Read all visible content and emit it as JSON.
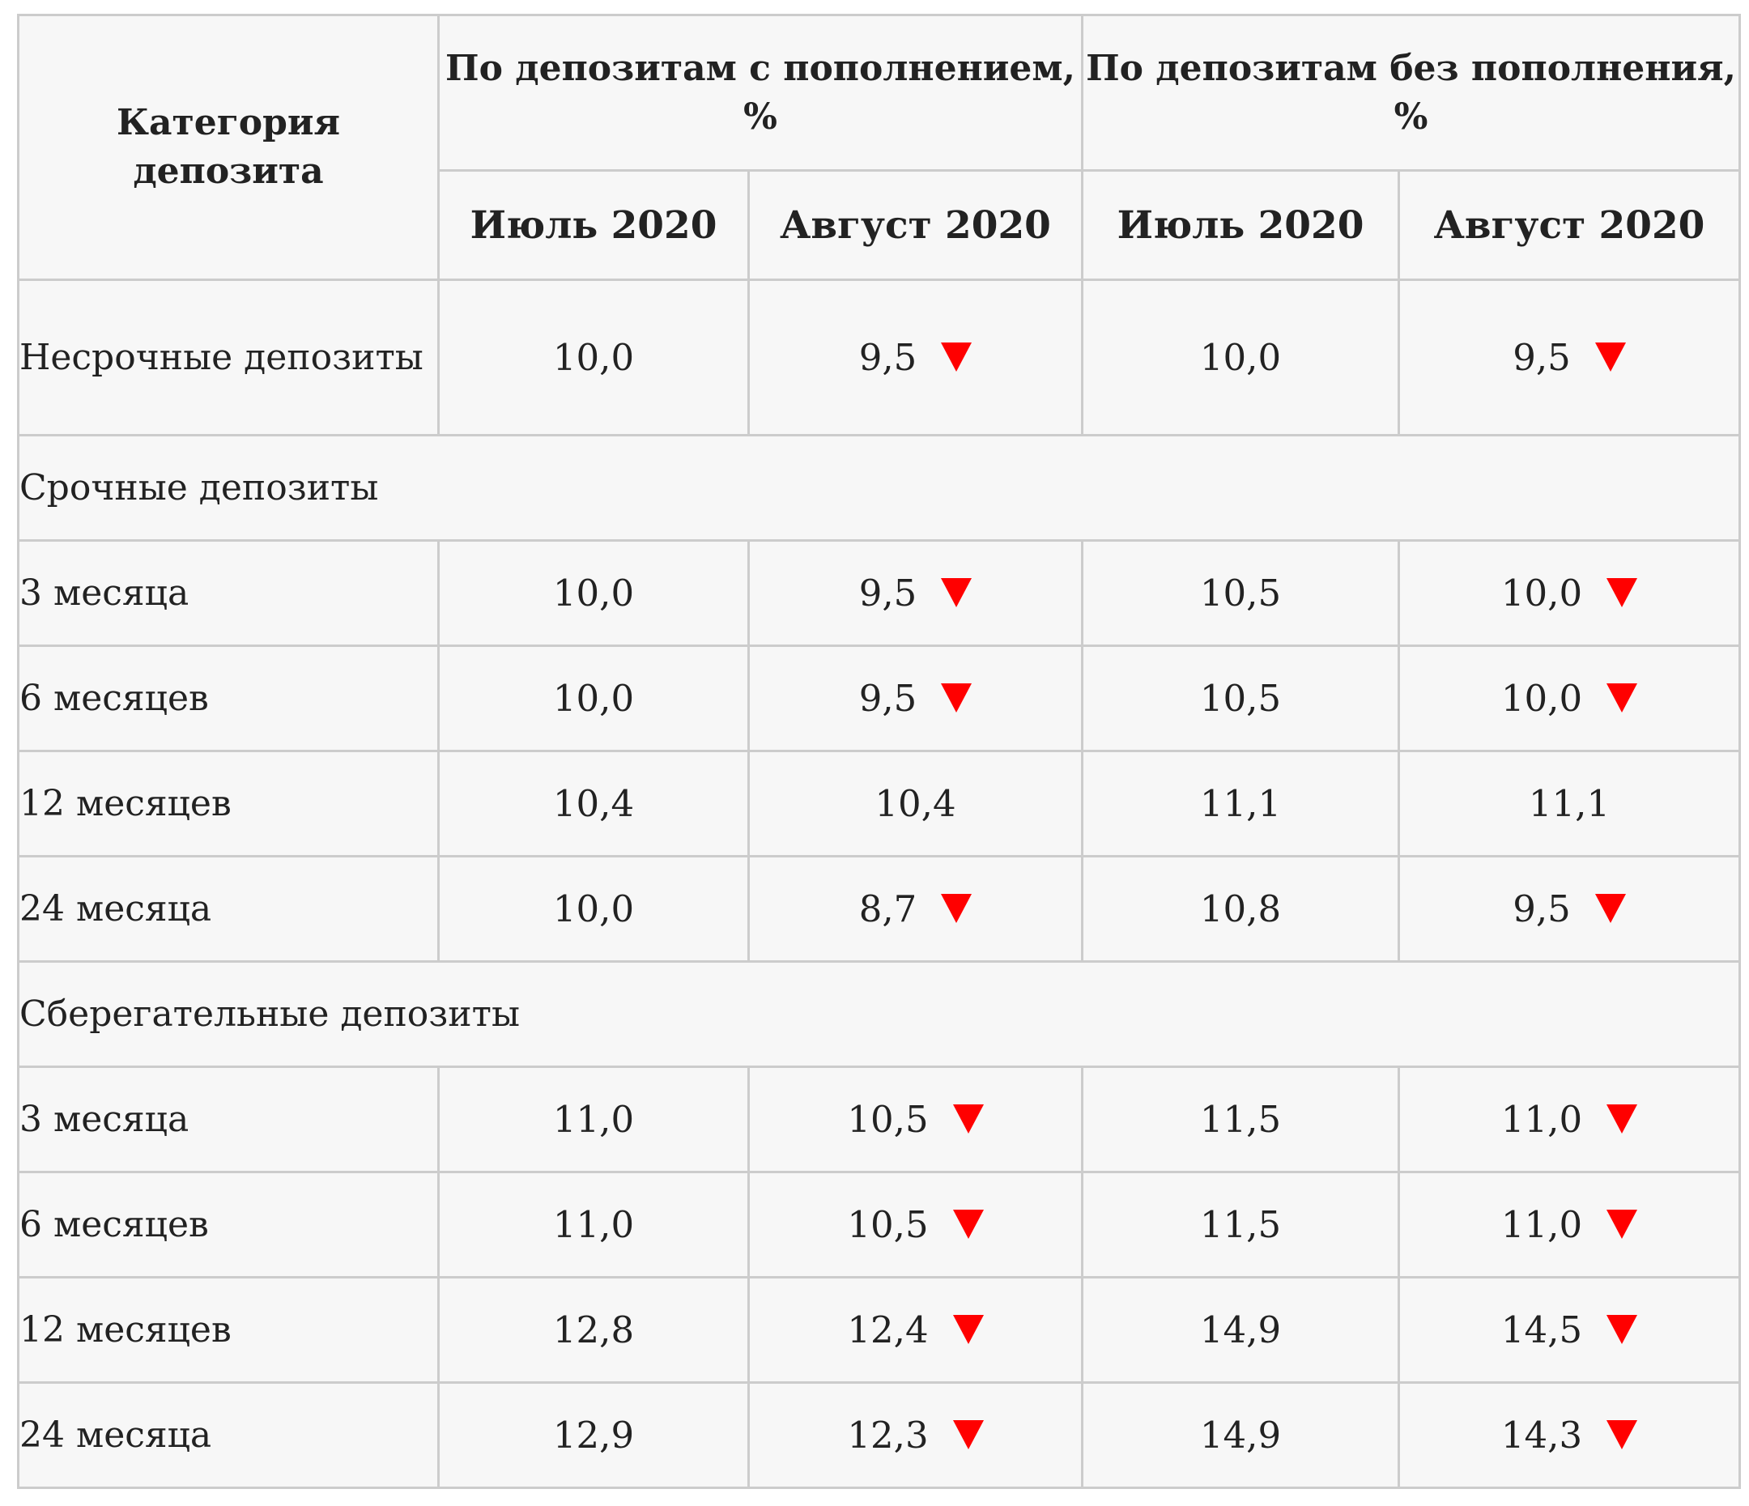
{
  "header": {
    "category": "Категория депозита",
    "group_with": "По депозитам с пополнением, %",
    "group_without": "По депозитам без пополнения, %",
    "months": [
      "Июль 2020",
      "Август 2020",
      "Июль 2020",
      "Август 2020"
    ]
  },
  "indicator": {
    "down_icon": "red-down-triangle",
    "color": "#ff0000",
    "header_color": "#1a3a8c"
  },
  "rows": [
    {
      "category": "Несрочные депозиты",
      "values": [
        "10,0",
        "9,5",
        "10,0",
        "9,5"
      ],
      "down": [
        false,
        true,
        false,
        true
      ]
    },
    {
      "section": "Срочные депозиты"
    },
    {
      "category": "3 месяца",
      "values": [
        "10,0",
        "9,5",
        "10,5",
        "10,0"
      ],
      "down": [
        false,
        true,
        false,
        true
      ]
    },
    {
      "category": "6 месяцев",
      "values": [
        "10,0",
        "9,5",
        "10,5",
        "10,0"
      ],
      "down": [
        false,
        true,
        false,
        true
      ]
    },
    {
      "category": "12 месяцев",
      "values": [
        "10,4",
        "10,4",
        "11,1",
        "11,1"
      ],
      "down": [
        false,
        false,
        false,
        false
      ]
    },
    {
      "category": "24 месяца",
      "values": [
        "10,0",
        "8,7",
        "10,8",
        "9,5"
      ],
      "down": [
        false,
        true,
        false,
        true
      ]
    },
    {
      "section": "Сберегательные депозиты"
    },
    {
      "category": "3 месяца",
      "values": [
        "11,0",
        "10,5",
        "11,5",
        "11,0"
      ],
      "down": [
        false,
        true,
        false,
        true
      ]
    },
    {
      "category": "6 месяцев",
      "values": [
        "11,0",
        "10,5",
        "11,5",
        "11,0"
      ],
      "down": [
        false,
        true,
        false,
        true
      ]
    },
    {
      "category": "12 месяцев",
      "values": [
        "12,8",
        "12,4",
        "14,9",
        "14,5"
      ],
      "down": [
        false,
        true,
        false,
        true
      ]
    },
    {
      "category": "24 месяца",
      "values": [
        "12,9",
        "12,3",
        "14,9",
        "14,3"
      ],
      "down": [
        false,
        true,
        false,
        true
      ]
    }
  ]
}
